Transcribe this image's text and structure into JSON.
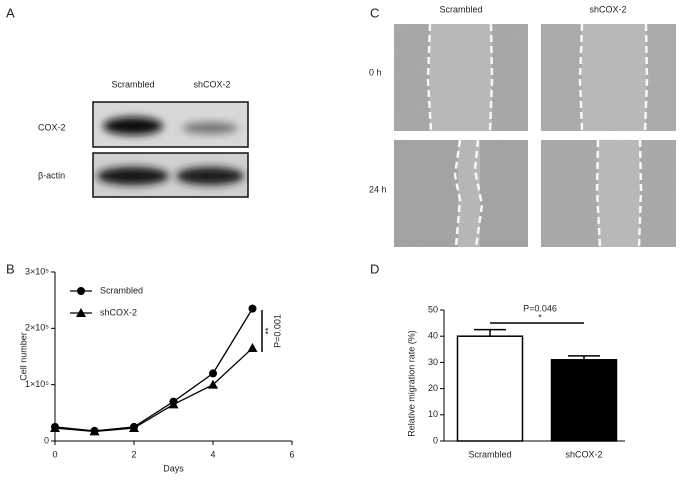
{
  "panel_labels": [
    "A",
    "B",
    "C",
    "D"
  ],
  "panel_a": {
    "columns": [
      "Scrambled",
      "shCOX-2"
    ],
    "rows": [
      "COX-2",
      "β-actin"
    ]
  },
  "panel_c": {
    "columns": [
      "Scrambled",
      "shCOX-2"
    ],
    "rows": [
      "0 h",
      "24 h"
    ]
  },
  "chart_data": [
    {
      "type": "line",
      "x_label": "Days",
      "y_label": "Cell number",
      "x": [
        0,
        1,
        2,
        3,
        4,
        5
      ],
      "series": [
        {
          "name": "Scrambled",
          "color": "#000000",
          "marker": "circle",
          "values": [
            25000,
            18000,
            25000,
            70000,
            120000,
            235000
          ]
        },
        {
          "name": "shCOX-2",
          "color": "#000000",
          "marker": "triangle",
          "values": [
            23000,
            17000,
            23000,
            65000,
            100000,
            165000
          ]
        }
      ],
      "xlim": [
        0,
        6
      ],
      "xticks": [
        0,
        2,
        4,
        6
      ],
      "ylim": [
        0,
        300000
      ],
      "yticks": [
        0,
        {
          "value": 100000,
          "label": "1×10⁵"
        },
        {
          "value": 200000,
          "label": "2×10⁵"
        },
        {
          "value": 300000,
          "label": "3×10⁵"
        }
      ],
      "legend": "top-left",
      "annotations": [
        "**",
        "P=0.001"
      ]
    },
    {
      "type": "bar",
      "y_label": "Relative migration rate (%)",
      "categories": [
        "Scrambled",
        "shCOX-2"
      ],
      "values": [
        40,
        31
      ],
      "errors": [
        2.5,
        1.5
      ],
      "colors": [
        "#ffffff",
        "#000000"
      ],
      "ylim": [
        0,
        50
      ],
      "yticks": [
        0,
        10,
        20,
        30,
        40,
        50
      ],
      "annotations": [
        "P=0.046",
        "*"
      ]
    }
  ]
}
